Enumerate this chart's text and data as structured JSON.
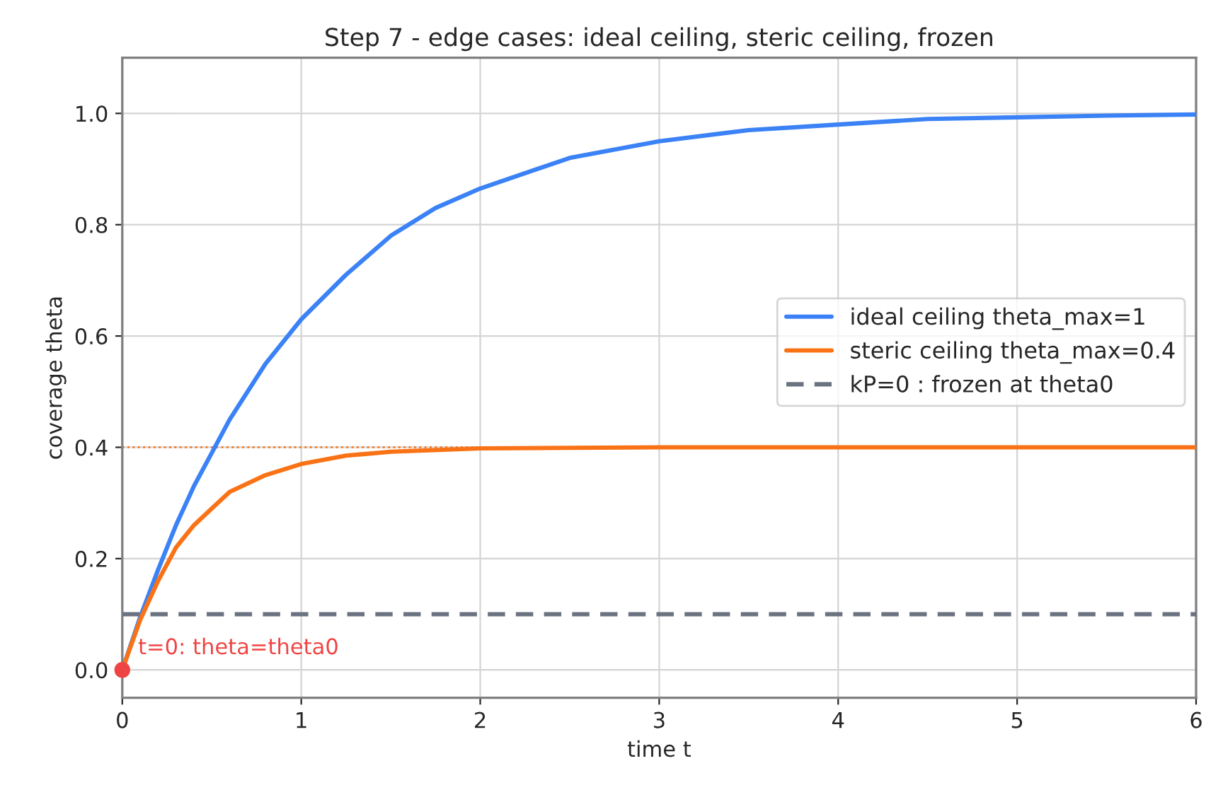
{
  "chart_data": {
    "type": "line",
    "title": "Step 7 - edge cases: ideal ceiling, steric ceiling, frozen",
    "xlabel": "time t",
    "ylabel": "coverage theta",
    "series": [
      {
        "name": "ideal ceiling theta_max=1",
        "color": "#3b82f6",
        "x": [
          0,
          0.1,
          0.2,
          0.3,
          0.4,
          0.5,
          0.6,
          0.8,
          1,
          1.25,
          1.5,
          1.75,
          2,
          2.5,
          3,
          3.5,
          4,
          4.5,
          5,
          5.5,
          6
        ],
        "values": [
          0,
          0.095,
          0.18,
          0.26,
          0.33,
          0.39,
          0.45,
          0.55,
          0.63,
          0.71,
          0.78,
          0.83,
          0.865,
          0.92,
          0.95,
          0.97,
          0.98,
          0.99,
          0.993,
          0.996,
          0.998
        ]
      },
      {
        "name": "steric ceiling theta_max=0.4",
        "color": "#f97316",
        "x": [
          0,
          0.1,
          0.2,
          0.3,
          0.4,
          0.5,
          0.6,
          0.8,
          1,
          1.25,
          1.5,
          2,
          3,
          4,
          6
        ],
        "values": [
          0,
          0.09,
          0.16,
          0.22,
          0.26,
          0.29,
          0.32,
          0.35,
          0.37,
          0.385,
          0.392,
          0.398,
          0.4,
          0.4,
          0.4
        ]
      },
      {
        "name": "kP=0 : frozen at theta0",
        "color": "#6b7280",
        "line_style": "dashed",
        "x": [
          0,
          6
        ],
        "values": [
          0.1,
          0.1
        ]
      },
      {
        "type": "scatter",
        "color": "#ef4444",
        "x": [
          0
        ],
        "values": [
          0
        ]
      }
    ],
    "ref_lines": [
      {
        "axis": "y",
        "value": 0.4,
        "color": "#f97316",
        "line_style": "dotted"
      }
    ],
    "annotations": [
      {
        "text": "t=0: theta=theta0",
        "x": 0,
        "y": 0
      }
    ],
    "xlim": [
      0,
      6
    ],
    "ylim": [
      -0.05,
      1.1
    ],
    "xticks": [
      0,
      1,
      2,
      3,
      4,
      5,
      6
    ],
    "yticks": [
      {
        "value": 0,
        "label": "0.0"
      },
      0.2,
      0.4,
      0.6,
      0.8,
      {
        "value": 1,
        "label": "1.0"
      }
    ],
    "grid": true,
    "legend": "right"
  }
}
